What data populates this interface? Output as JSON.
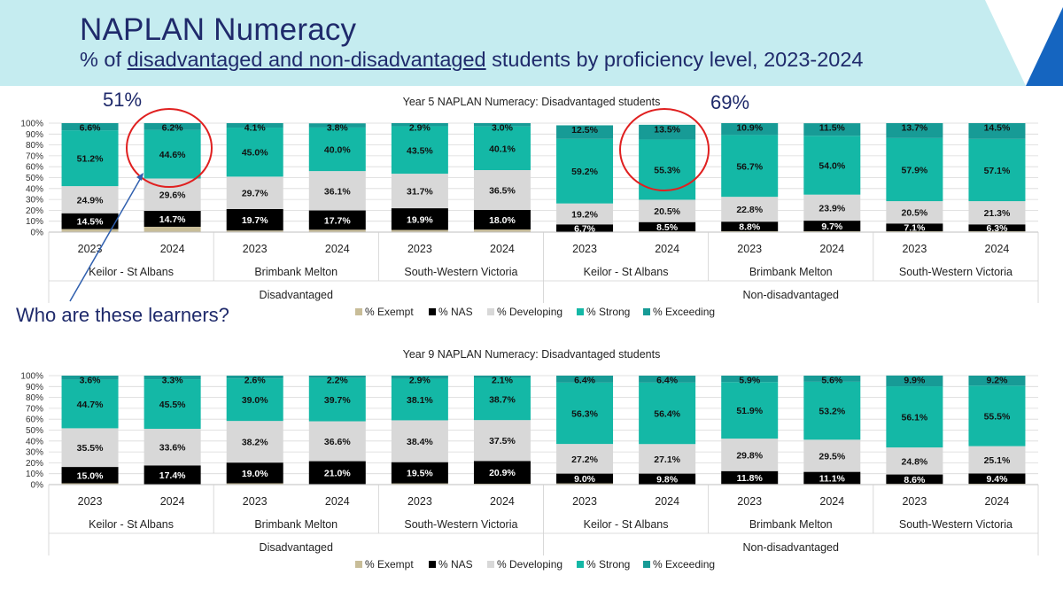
{
  "header": {
    "title": "NAPLAN Numeracy",
    "subtitle_pre": "% of ",
    "subtitle_underlined": "disadvantaged and non-disadvantaged",
    "subtitle_post": " students by proficiency level, 2023-2024"
  },
  "callouts": {
    "left_pct": "51%",
    "right_pct": "69%",
    "question": "Who are these learners?"
  },
  "colors": {
    "header_band": "#c5ecf0",
    "header_accent": "#1565c0",
    "title_text": "#1f2a6b",
    "highlight_circle": "#e02020",
    "arrow": "#2f5fae",
    "exempt": "#c8bd98",
    "nas": "#000000",
    "developing": "#d8d8d8",
    "strong": "#14b8a6",
    "exceeding": "#179b96"
  },
  "chart_data": [
    {
      "type": "bar",
      "stacked": true,
      "title": "Year 5 NAPLAN Numeracy: Disadvantaged students",
      "ylim": [
        0,
        100
      ],
      "yticks": [
        "0%",
        "10%",
        "20%",
        "30%",
        "40%",
        "50%",
        "60%",
        "70%",
        "80%",
        "90%",
        "100%"
      ],
      "grid": true,
      "legend_position": "bottom",
      "categories": [
        "2023",
        "2024",
        "2023",
        "2024",
        "2023",
        "2024",
        "2023",
        "2024",
        "2023",
        "2024",
        "2023",
        "2024"
      ],
      "regions": [
        "Keilor - St Albans",
        "Brimbank Melton",
        "South-Western Victoria",
        "Keilor - St Albans",
        "Brimbank Melton",
        "South-Western Victoria"
      ],
      "groups": [
        "Disadvantaged",
        "Non-disadvantaged"
      ],
      "series": [
        {
          "name": "% Exempt",
          "color": "#c8bd98",
          "values": [
            2.8,
            4.9,
            1.5,
            2.2,
            2.0,
            2.4,
            0.4,
            0.7,
            0.8,
            0.8,
            0.8,
            0.8
          ],
          "labels": [
            "",
            "",
            "",
            "",
            "",
            "",
            "",
            "",
            "",
            "",
            "",
            ""
          ]
        },
        {
          "name": "% NAS",
          "color": "#000000",
          "values": [
            14.5,
            14.7,
            19.7,
            17.7,
            19.9,
            18.0,
            6.7,
            8.5,
            8.8,
            9.7,
            7.1,
            6.3
          ],
          "labels": [
            "14.5%",
            "14.7%",
            "19.7%",
            "17.7%",
            "19.9%",
            "18.0%",
            "6.7%",
            "8.5%",
            "8.8%",
            "9.7%",
            "7.1%",
            "6.3%"
          ]
        },
        {
          "name": "% Developing",
          "color": "#d8d8d8",
          "values": [
            24.9,
            29.6,
            29.7,
            36.1,
            31.7,
            36.5,
            19.2,
            20.5,
            22.8,
            23.9,
            20.5,
            21.3
          ],
          "labels": [
            "24.9%",
            "29.6%",
            "29.7%",
            "36.1%",
            "31.7%",
            "36.5%",
            "19.2%",
            "20.5%",
            "22.8%",
            "23.9%",
            "20.5%",
            "21.3%"
          ]
        },
        {
          "name": "% Strong",
          "color": "#14b8a6",
          "values": [
            51.2,
            44.6,
            45.0,
            40.0,
            43.5,
            40.1,
            59.2,
            55.3,
            56.7,
            54.0,
            57.9,
            57.1
          ],
          "labels": [
            "51.2%",
            "44.6%",
            "45.0%",
            "40.0%",
            "43.5%",
            "40.1%",
            "59.2%",
            "55.3%",
            "56.7%",
            "54.0%",
            "57.9%",
            "57.1%"
          ]
        },
        {
          "name": "% Exceeding",
          "color": "#179b96",
          "values": [
            6.6,
            6.2,
            4.1,
            3.8,
            2.9,
            3.0,
            12.5,
            13.5,
            10.9,
            11.5,
            13.7,
            14.5
          ],
          "labels": [
            "6.6%",
            "6.2%",
            "4.1%",
            "3.8%",
            "2.9%",
            "3.0%",
            "12.5%",
            "13.5%",
            "10.9%",
            "11.5%",
            "13.7%",
            "14.5%"
          ]
        }
      ]
    },
    {
      "type": "bar",
      "stacked": true,
      "title": "Year 9 NAPLAN Numeracy: Disadvantaged students",
      "ylim": [
        0,
        100
      ],
      "yticks": [
        "0%",
        "10%",
        "20%",
        "30%",
        "40%",
        "50%",
        "60%",
        "70%",
        "80%",
        "90%",
        "100%"
      ],
      "grid": true,
      "legend_position": "bottom",
      "categories": [
        "2023",
        "2024",
        "2023",
        "2024",
        "2023",
        "2024",
        "2023",
        "2024",
        "2023",
        "2024",
        "2023",
        "2024"
      ],
      "regions": [
        "Keilor - St Albans",
        "Brimbank Melton",
        "South-Western Victoria",
        "Keilor - St Albans",
        "Brimbank Melton",
        "South-Western Victoria"
      ],
      "groups": [
        "Disadvantaged",
        "Non-disadvantaged"
      ],
      "series": [
        {
          "name": "% Exempt",
          "color": "#c8bd98",
          "values": [
            1.2,
            0.2,
            1.2,
            0.5,
            1.1,
            0.8,
            1.1,
            0.3,
            0.6,
            0.6,
            0.7,
            0.8
          ],
          "labels": [
            "",
            "",
            "",
            "",
            "",
            "",
            "",
            "",
            "",
            "",
            "",
            ""
          ]
        },
        {
          "name": "% NAS",
          "color": "#000000",
          "values": [
            15.0,
            17.4,
            19.0,
            21.0,
            19.5,
            20.9,
            9.0,
            9.8,
            11.8,
            11.1,
            8.6,
            9.4
          ],
          "labels": [
            "15.0%",
            "17.4%",
            "19.0%",
            "21.0%",
            "19.5%",
            "20.9%",
            "9.0%",
            "9.8%",
            "11.8%",
            "11.1%",
            "8.6%",
            "9.4%"
          ]
        },
        {
          "name": "% Developing",
          "color": "#d8d8d8",
          "values": [
            35.5,
            33.6,
            38.2,
            36.6,
            38.4,
            37.5,
            27.2,
            27.1,
            29.8,
            29.5,
            24.8,
            25.1
          ],
          "labels": [
            "35.5%",
            "33.6%",
            "38.2%",
            "36.6%",
            "38.4%",
            "37.5%",
            "27.2%",
            "27.1%",
            "29.8%",
            "29.5%",
            "24.8%",
            "25.1%"
          ]
        },
        {
          "name": "% Strong",
          "color": "#14b8a6",
          "values": [
            44.7,
            45.5,
            39.0,
            39.7,
            38.1,
            38.7,
            56.3,
            56.4,
            51.9,
            53.2,
            56.1,
            55.5
          ],
          "labels": [
            "44.7%",
            "45.5%",
            "39.0%",
            "39.7%",
            "38.1%",
            "38.7%",
            "56.3%",
            "56.4%",
            "51.9%",
            "53.2%",
            "56.1%",
            "55.5%"
          ]
        },
        {
          "name": "% Exceeding",
          "color": "#179b96",
          "values": [
            3.6,
            3.3,
            2.6,
            2.2,
            2.9,
            2.1,
            6.4,
            6.4,
            5.9,
            5.6,
            9.9,
            9.2
          ],
          "labels": [
            "3.6%",
            "3.3%",
            "2.6%",
            "2.2%",
            "2.9%",
            "2.1%",
            "6.4%",
            "6.4%",
            "5.9%",
            "5.6%",
            "9.9%",
            "9.2%"
          ]
        }
      ]
    }
  ]
}
